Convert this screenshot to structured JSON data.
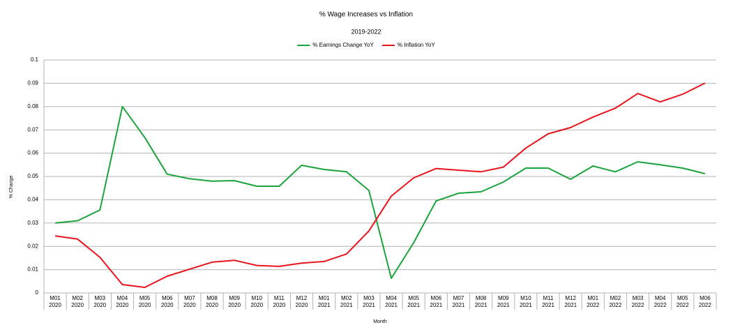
{
  "chart_data": {
    "type": "line",
    "title": "% Wage Increases vs Inflation",
    "subtitle": "2019-2022",
    "x_label": "Month",
    "y_label": "% Change",
    "categories": [
      "M01 2020",
      "M02 2020",
      "M03 2020",
      "M04 2020",
      "M05 2020",
      "M06 2020",
      "M07 2020",
      "M08 2020",
      "M09 2020",
      "M10 2020",
      "M11 2020",
      "M12 2020",
      "M01 2021",
      "M02 2021",
      "M03 2021",
      "M04 2021",
      "M05 2021",
      "M06 2021",
      "M07 2021",
      "M08 2021",
      "M09 2021",
      "M10 2021",
      "M11 2021",
      "M12 2021",
      "M01 2022",
      "M02 2022",
      "M03 2022",
      "M04 2022",
      "M05 2022",
      "M06 2022"
    ],
    "series": [
      {
        "name": "% Earnings Change YoY",
        "color": "#1aa33a",
        "values": [
          0.03,
          0.031,
          0.0356,
          0.08,
          0.0667,
          0.051,
          0.049,
          0.048,
          0.0482,
          0.0458,
          0.0458,
          0.0548,
          0.053,
          0.052,
          0.044,
          0.0063,
          0.0216,
          0.0395,
          0.0428,
          0.0434,
          0.0476,
          0.0536,
          0.0536,
          0.0488,
          0.0545,
          0.052,
          0.0563,
          0.055,
          0.0536,
          0.0512
        ]
      },
      {
        "name": "% Inflation YoY",
        "color": "#e8141b",
        "values": [
          0.0245,
          0.0231,
          0.0153,
          0.0036,
          0.0024,
          0.0072,
          0.0102,
          0.0132,
          0.014,
          0.0118,
          0.0114,
          0.0128,
          0.0135,
          0.0167,
          0.0266,
          0.0416,
          0.0494,
          0.0534,
          0.0527,
          0.052,
          0.054,
          0.0622,
          0.0683,
          0.071,
          0.0755,
          0.0793,
          0.0856,
          0.082,
          0.0853,
          0.0901
        ]
      }
    ],
    "ylim": [
      0,
      0.1
    ],
    "yticks": [
      0,
      0.01,
      0.02,
      0.03,
      0.04,
      0.05,
      0.06,
      0.07,
      0.08,
      0.09,
      0.1
    ],
    "grid": true,
    "legend": "top"
  }
}
